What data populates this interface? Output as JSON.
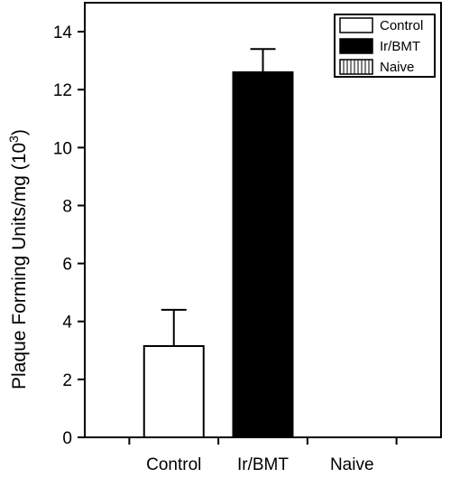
{
  "chart_data": {
    "type": "bar",
    "title": "",
    "xlabel": "",
    "ylabel": "Plaque Forming Units/mg (10",
    "ylabel_superscript": "3",
    "ylabel_suffix": ")",
    "ylim": [
      0,
      15
    ],
    "yticks": [
      0,
      2,
      4,
      6,
      8,
      10,
      12,
      14
    ],
    "categories": [
      "Control",
      "Ir/BMT",
      "Naive"
    ],
    "values": [
      3.15,
      12.6,
      0
    ],
    "error_upper": [
      4.4,
      13.4,
      null
    ],
    "bar_styles": [
      "white",
      "black",
      "hatched"
    ],
    "legend_placement": "top-right",
    "legend": [
      {
        "label": "Control",
        "style": "white"
      },
      {
        "label": "Ir/BMT",
        "style": "black"
      },
      {
        "label": "Naive",
        "style": "hatched"
      }
    ],
    "grid": false,
    "colors": {
      "axis": "#000000",
      "bar_fill_white": "#ffffff",
      "bar_fill_black": "#000000",
      "hatch": "#000000"
    }
  }
}
